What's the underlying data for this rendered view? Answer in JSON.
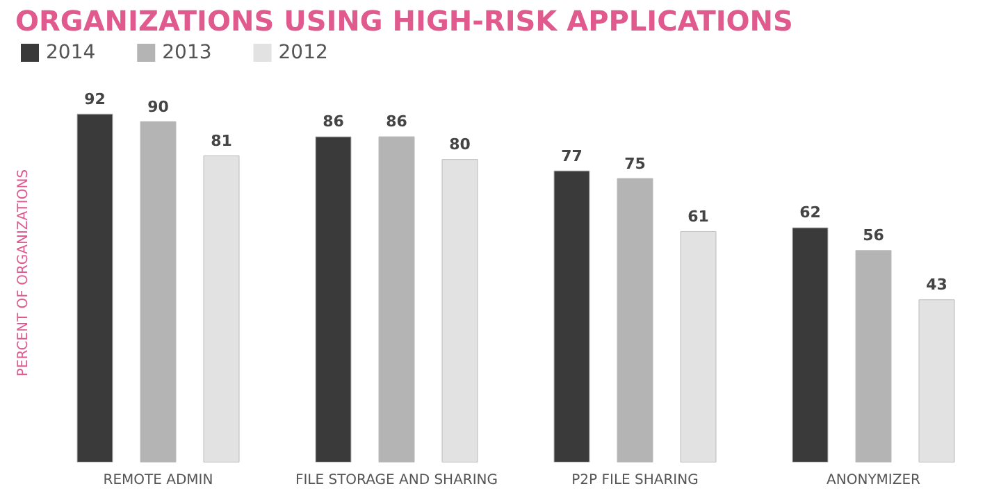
{
  "chart_data": {
    "type": "bar",
    "title": "ORGANIZATIONS USING HIGH-RISK APPLICATIONS",
    "ylabel": "PERCENT OF ORGANIZATIONS",
    "categories": [
      "REMOTE ADMIN",
      "FILE STORAGE AND SHARING",
      "P2P FILE SHARING",
      "ANONYMIZER"
    ],
    "series": [
      {
        "name": "2014",
        "color": "#3a3a3a",
        "values": [
          92,
          86,
          77,
          62
        ]
      },
      {
        "name": "2013",
        "color": "#b4b4b4",
        "values": [
          90,
          86,
          75,
          56
        ]
      },
      {
        "name": "2012",
        "color": "#e2e2e2",
        "values": [
          81,
          80,
          61,
          43
        ]
      }
    ],
    "data_labels": true,
    "legend": "top left",
    "grid": false
  }
}
